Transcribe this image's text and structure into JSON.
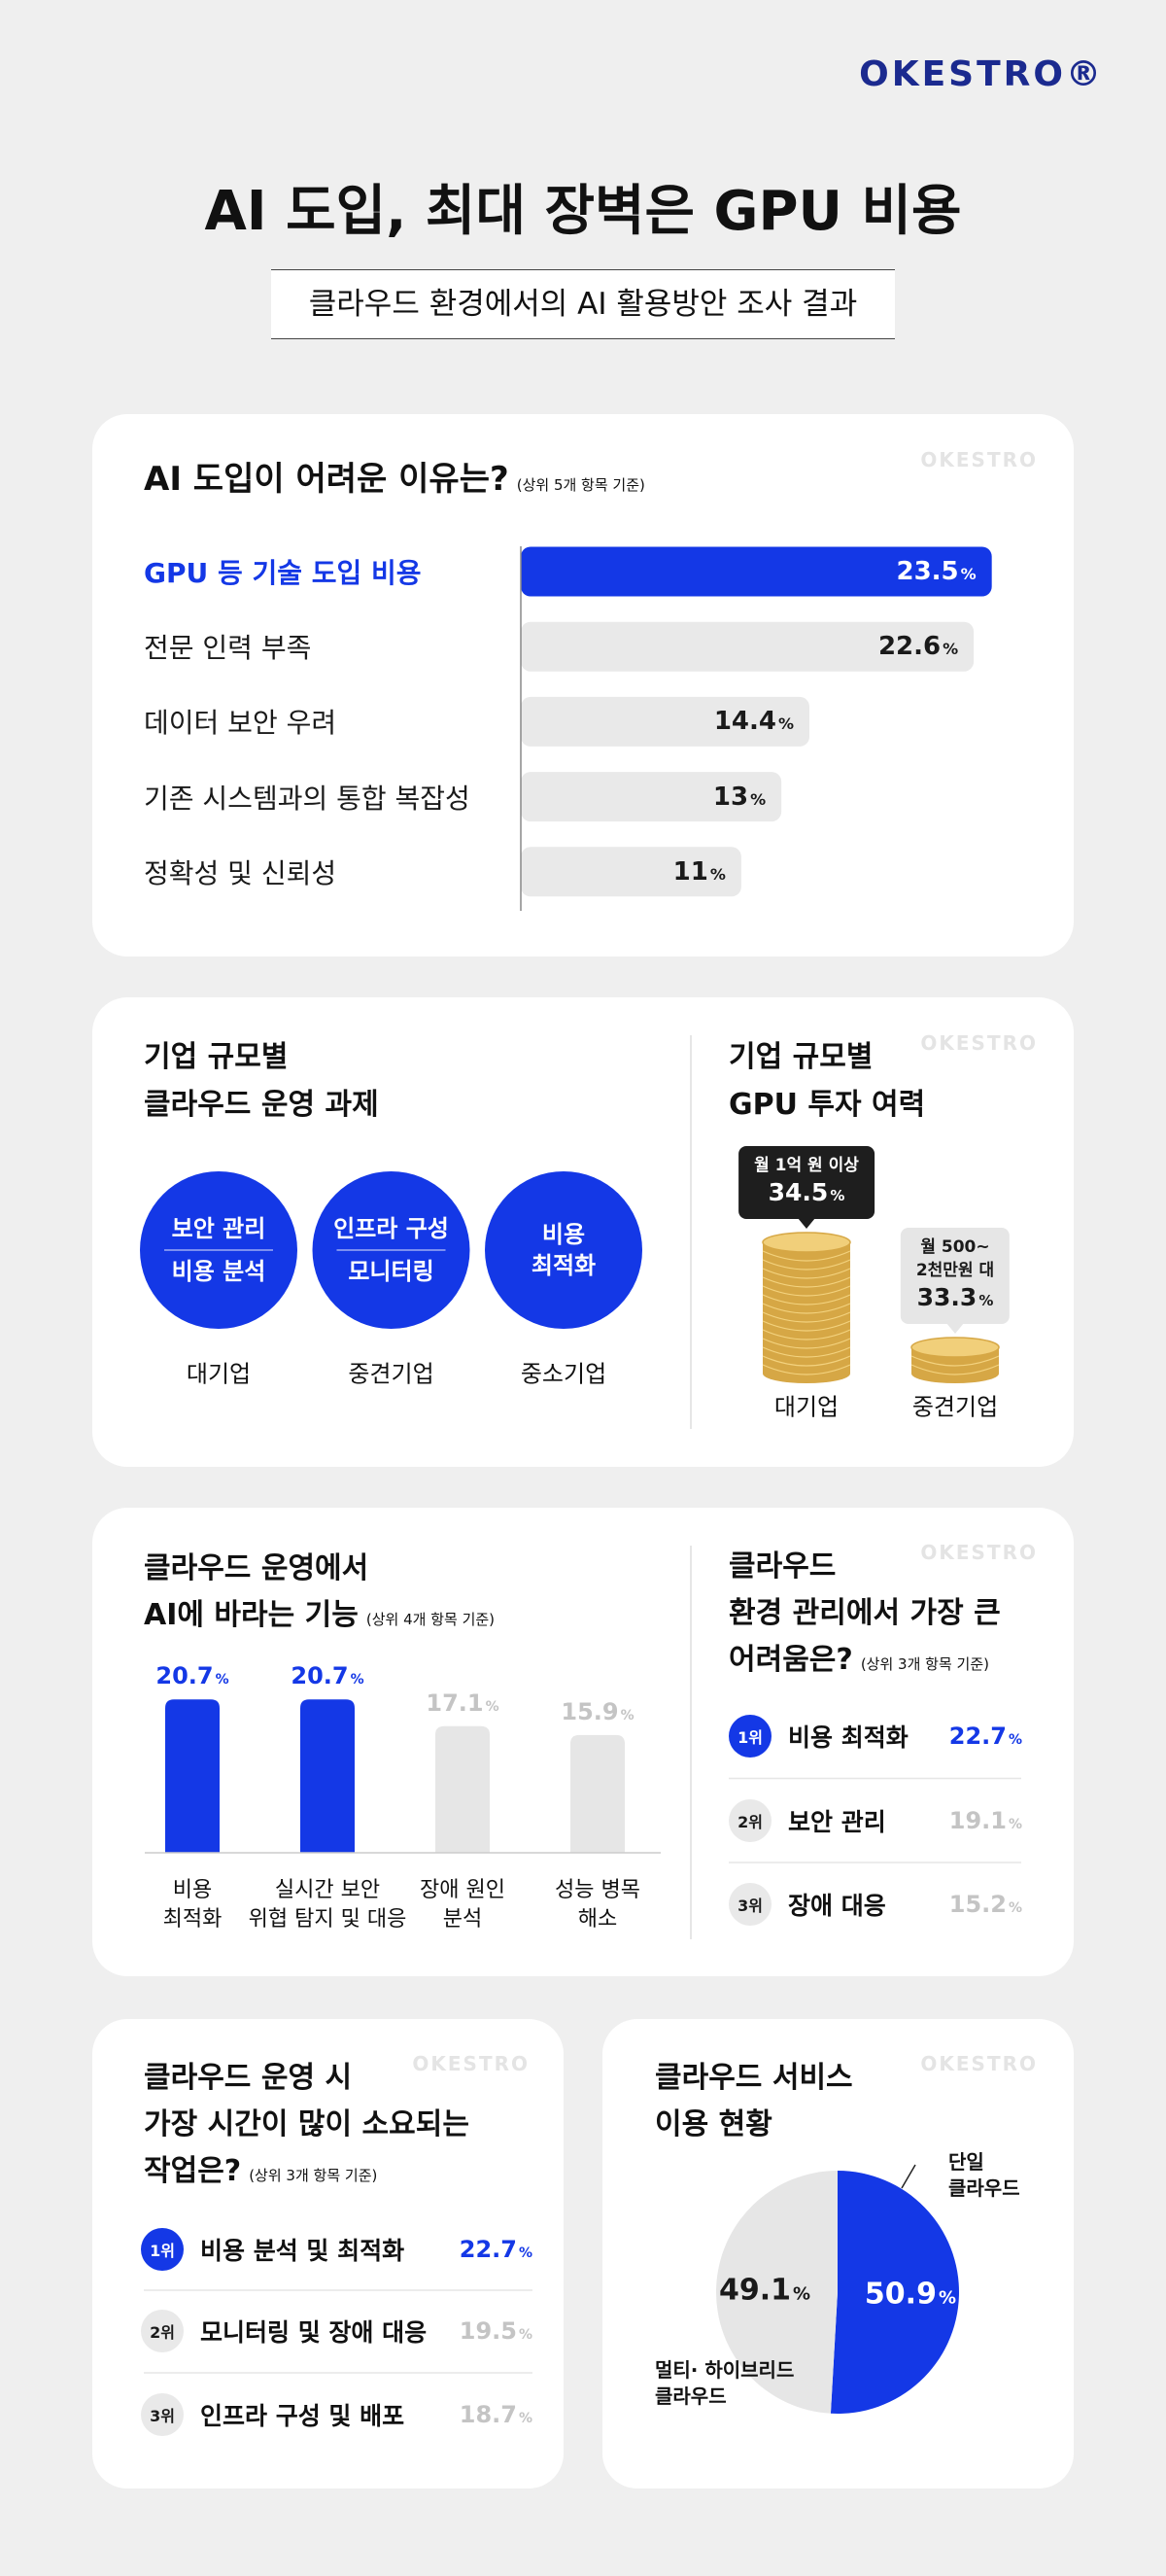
{
  "logo": "OKESTRO®",
  "watermark": "OKESTRO",
  "unit": "%",
  "header": {
    "title": "AI 도입, 최대 장벽은 GPU 비용",
    "subtitle": "클라우드 환경에서의 AI 활용방안 조사 결과"
  },
  "challenges": {
    "title": "기업 규모별\n클라우드 운영 과제",
    "color": "#1438e6",
    "groups": [
      {
        "tasks": [
          "보안 관리",
          "비용 분석"
        ],
        "company": "대기업"
      },
      {
        "tasks": [
          "인프라 구성",
          "모니터링"
        ],
        "company": "중견기업"
      },
      {
        "tasks": [
          "비용\n최적화"
        ],
        "company": "중소기업"
      }
    ]
  },
  "chart_data": [
    {
      "type": "hbar",
      "title": "AI 도입이 어려운 이유는?",
      "note": "(상위 5개 항목 기준)",
      "categories": [
        "GPU 등 기술 도입 비용",
        "전문 인력 부족",
        "데이터 보안 우려",
        "기존 시스템과의 통합 복잡성",
        "정확성 및 신뢰성"
      ],
      "values": [
        23.5,
        22.6,
        14.4,
        13,
        11
      ],
      "xlim": [
        0,
        24
      ],
      "colors": [
        "#1438e6",
        "#e9e9e9",
        "#e9e9e9",
        "#e9e9e9",
        "#e9e9e9"
      ],
      "category_colors": [
        "#1438e6",
        "#1a1a1a",
        "#1a1a1a",
        "#1a1a1a",
        "#1a1a1a"
      ],
      "value_colors": [
        "#ffffff",
        "#1a1a1a",
        "#1a1a1a",
        "#1a1a1a",
        "#1a1a1a"
      ]
    },
    {
      "type": "stack",
      "title": "기업 규모별\nGPU 투자 여력",
      "categories": [
        "대기업",
        "중견기업"
      ],
      "labels": [
        "월 1억 원 이상",
        "월 500~\n2천만원 대"
      ],
      "values": [
        34.5,
        33.3
      ],
      "ylim": [
        33,
        35
      ],
      "box_colors": [
        "#1e1e1e",
        "#e6e6e6"
      ],
      "box_text_colors": [
        "#ffffff",
        "#1a1a1a"
      ],
      "color": "#d6a745"
    },
    {
      "type": "bar",
      "title": "클라우드 운영에서\nAI에 바라는 기능",
      "note": "(상위 4개 항목 기준)",
      "categories": [
        "비용\n최적화",
        "실시간 보안\n위협 탐지 및 대응",
        "장애 원인\n분석",
        "성능 병목\n해소"
      ],
      "values": [
        20.7,
        20.7,
        17.1,
        15.9
      ],
      "ylim": [
        0,
        21
      ],
      "colors": [
        "#1438e6",
        "#1438e6",
        "#e6e6e6",
        "#e6e6e6"
      ],
      "value_colors": [
        "#1438e6",
        "#1438e6",
        "#c4c4c4",
        "#c4c4c4"
      ]
    },
    {
      "type": "ranking",
      "title": "클라우드\n환경 관리에서 가장 큰\n어려움은?",
      "note": "(상위 3개 항목 기준)",
      "ranks": [
        "1위",
        "2위",
        "3위"
      ],
      "categories": [
        "비용 최적화",
        "보안 관리",
        "장애 대응"
      ],
      "values": [
        22.7,
        19.1,
        15.2
      ],
      "badge_colors": [
        "#1438e6",
        "#e9e9e9",
        "#e9e9e9"
      ],
      "badge_text_colors": [
        "#ffffff",
        "#1a1a1a",
        "#1a1a1a"
      ],
      "value_colors": [
        "#1438e6",
        "#c4c4c4",
        "#c4c4c4"
      ]
    },
    {
      "type": "ranking",
      "title": "클라우드 운영 시\n가장 시간이 많이 소요되는\n작업은?",
      "note": "(상위 3개 항목 기준)",
      "ranks": [
        "1위",
        "2위",
        "3위"
      ],
      "categories": [
        "비용 분석 및 최적화",
        "모니터링 및 장애 대응",
        "인프라 구성 및 배포"
      ],
      "values": [
        22.7,
        19.5,
        18.7
      ],
      "badge_colors": [
        "#1438e6",
        "#e9e9e9",
        "#e9e9e9"
      ],
      "badge_text_colors": [
        "#ffffff",
        "#1a1a1a",
        "#1a1a1a"
      ],
      "value_colors": [
        "#1438e6",
        "#c4c4c4",
        "#c4c4c4"
      ]
    },
    {
      "type": "pie",
      "title": "클라우드 서비스\n이용 현황",
      "categories": [
        "단일\n클라우드",
        "멀티· 하이브리드\n클라우드"
      ],
      "values": [
        50.9,
        49.1
      ],
      "colors": [
        "#1438e6",
        "#e6e6e6"
      ],
      "value_colors": [
        "#ffffff",
        "#1a1a1a"
      ]
    }
  ]
}
